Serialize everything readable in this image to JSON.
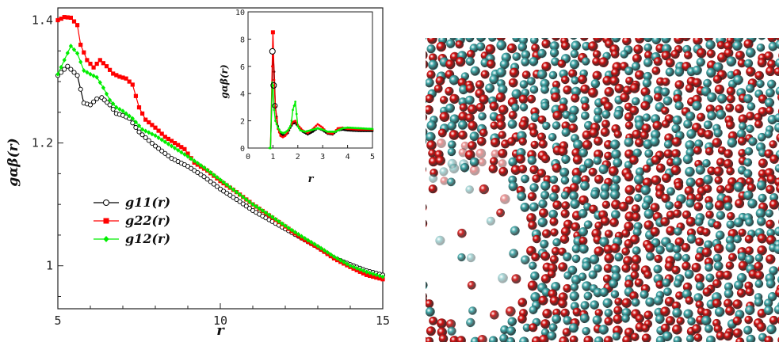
{
  "chart_data": [
    {
      "type": "line",
      "xlabel": "r",
      "ylabel": "gαβ(r)",
      "xlim": [
        5,
        15
      ],
      "ylim": [
        0.93,
        1.42
      ],
      "xticks": [
        "5",
        "10",
        "15"
      ],
      "yticks": [
        "1",
        "1.2",
        "1.4"
      ],
      "legend_position": "left-middle",
      "series": [
        {
          "name": "g11(r)",
          "color": "#000000",
          "marker": "open-circle",
          "x": [
            5.0,
            5.3,
            5.6,
            5.8,
            6.0,
            6.2,
            6.35,
            6.6,
            6.8,
            7.0,
            7.2,
            7.5,
            7.8,
            8.0,
            8.5,
            9.0,
            9.5,
            10,
            10.5,
            11,
            11.5,
            12,
            12.5,
            13,
            13.5,
            14,
            14.5,
            15
          ],
          "y": [
            1.31,
            1.325,
            1.31,
            1.265,
            1.262,
            1.272,
            1.274,
            1.262,
            1.248,
            1.245,
            1.24,
            1.218,
            1.204,
            1.195,
            1.175,
            1.162,
            1.145,
            1.125,
            1.108,
            1.09,
            1.075,
            1.06,
            1.045,
            1.03,
            1.013,
            1.002,
            0.992,
            0.985
          ]
        },
        {
          "name": "g22(r)",
          "color": "#ff0000",
          "marker": "filled-square",
          "x": [
            5.0,
            5.2,
            5.4,
            5.6,
            5.7,
            5.9,
            6.1,
            6.3,
            6.5,
            6.7,
            6.9,
            7.1,
            7.3,
            7.5,
            7.7,
            8.0,
            8.3,
            8.6,
            8.9,
            9.2,
            9.6,
            10,
            10.5,
            11,
            11.5,
            12,
            12.5,
            13,
            13.5,
            14,
            14.5,
            15
          ],
          "y": [
            1.4,
            1.405,
            1.404,
            1.392,
            1.36,
            1.335,
            1.323,
            1.335,
            1.325,
            1.313,
            1.308,
            1.305,
            1.295,
            1.258,
            1.238,
            1.225,
            1.21,
            1.2,
            1.19,
            1.168,
            1.155,
            1.138,
            1.12,
            1.1,
            1.082,
            1.064,
            1.045,
            1.03,
            1.012,
            0.998,
            0.985,
            0.978
          ]
        },
        {
          "name": "g12(r)",
          "color": "#00ee00",
          "marker": "diamond",
          "x": [
            5.0,
            5.2,
            5.4,
            5.6,
            5.8,
            6.0,
            6.2,
            6.4,
            6.6,
            6.8,
            7.0,
            7.3,
            7.6,
            8.0,
            8.5,
            9.0,
            9.5,
            10,
            10.5,
            11,
            11.5,
            12,
            12.5,
            13,
            13.5,
            14,
            14.5,
            15
          ],
          "y": [
            1.312,
            1.335,
            1.358,
            1.346,
            1.318,
            1.312,
            1.307,
            1.29,
            1.27,
            1.258,
            1.252,
            1.24,
            1.222,
            1.212,
            1.195,
            1.178,
            1.16,
            1.14,
            1.12,
            1.1,
            1.083,
            1.065,
            1.048,
            1.032,
            1.015,
            1.0,
            0.99,
            0.982
          ]
        }
      ]
    },
    {
      "type": "line",
      "inset": true,
      "xlabel": "r",
      "ylabel": "gαβ(r)",
      "xlim": [
        0,
        5
      ],
      "ylim": [
        0,
        10
      ],
      "xticks": [
        "0",
        "1",
        "2",
        "3",
        "4",
        "5"
      ],
      "yticks": [
        "0",
        "2",
        "4",
        "6",
        "8",
        "10"
      ],
      "series": [
        {
          "name": "g11(r)",
          "color": "#000000",
          "x": [
            0.9,
            0.97,
            1.0,
            1.05,
            1.1,
            1.2,
            1.3,
            1.4,
            1.5,
            1.6,
            1.7,
            1.8,
            1.9,
            2.0,
            2.2,
            2.4,
            2.6,
            2.8,
            3.0,
            3.2,
            3.4,
            3.6,
            3.8,
            4.0,
            4.5,
            5.0
          ],
          "y": [
            0,
            4.5,
            7.1,
            5.6,
            3.0,
            1.6,
            1.1,
            0.95,
            0.95,
            1.1,
            1.5,
            1.8,
            1.85,
            1.6,
            1.2,
            1.0,
            1.2,
            1.45,
            1.3,
            1.05,
            1.0,
            1.3,
            1.35,
            1.3,
            1.25,
            1.25
          ]
        },
        {
          "name": "g22(r)",
          "color": "#ff0000",
          "x": [
            0.9,
            0.97,
            1.0,
            1.05,
            1.1,
            1.2,
            1.3,
            1.4,
            1.5,
            1.6,
            1.7,
            1.8,
            1.9,
            2.0,
            2.2,
            2.4,
            2.6,
            2.8,
            3.0,
            3.2,
            3.4,
            3.6,
            3.8,
            4.0,
            4.5,
            5.0
          ],
          "y": [
            0,
            6.0,
            8.5,
            5.0,
            3.0,
            1.4,
            0.9,
            0.8,
            0.9,
            1.2,
            1.6,
            1.9,
            2.0,
            1.7,
            1.3,
            1.1,
            1.4,
            1.75,
            1.5,
            1.1,
            1.05,
            1.45,
            1.5,
            1.4,
            1.35,
            1.35
          ]
        },
        {
          "name": "g12(r)",
          "color": "#00ee00",
          "x": [
            0.86,
            0.9,
            0.97,
            1.0,
            1.05,
            1.1,
            1.2,
            1.3,
            1.4,
            1.5,
            1.6,
            1.7,
            1.75,
            1.8,
            1.9,
            2.0,
            2.1,
            2.3,
            2.5,
            2.8,
            3.0,
            3.2,
            3.5,
            3.8,
            4.0,
            4.5,
            5.0
          ],
          "y": [
            0,
            0,
            4.8,
            4.6,
            2.8,
            2.0,
            1.5,
            1.2,
            1.1,
            1.15,
            1.3,
            1.6,
            2.0,
            2.8,
            3.4,
            1.6,
            1.3,
            1.2,
            1.3,
            1.45,
            1.35,
            1.2,
            1.2,
            1.45,
            1.5,
            1.45,
            1.4
          ]
        }
      ]
    }
  ],
  "snapshot": {
    "particle_colors": {
      "species_1": "#3fa9aa",
      "species_2": "#d41010"
    }
  }
}
